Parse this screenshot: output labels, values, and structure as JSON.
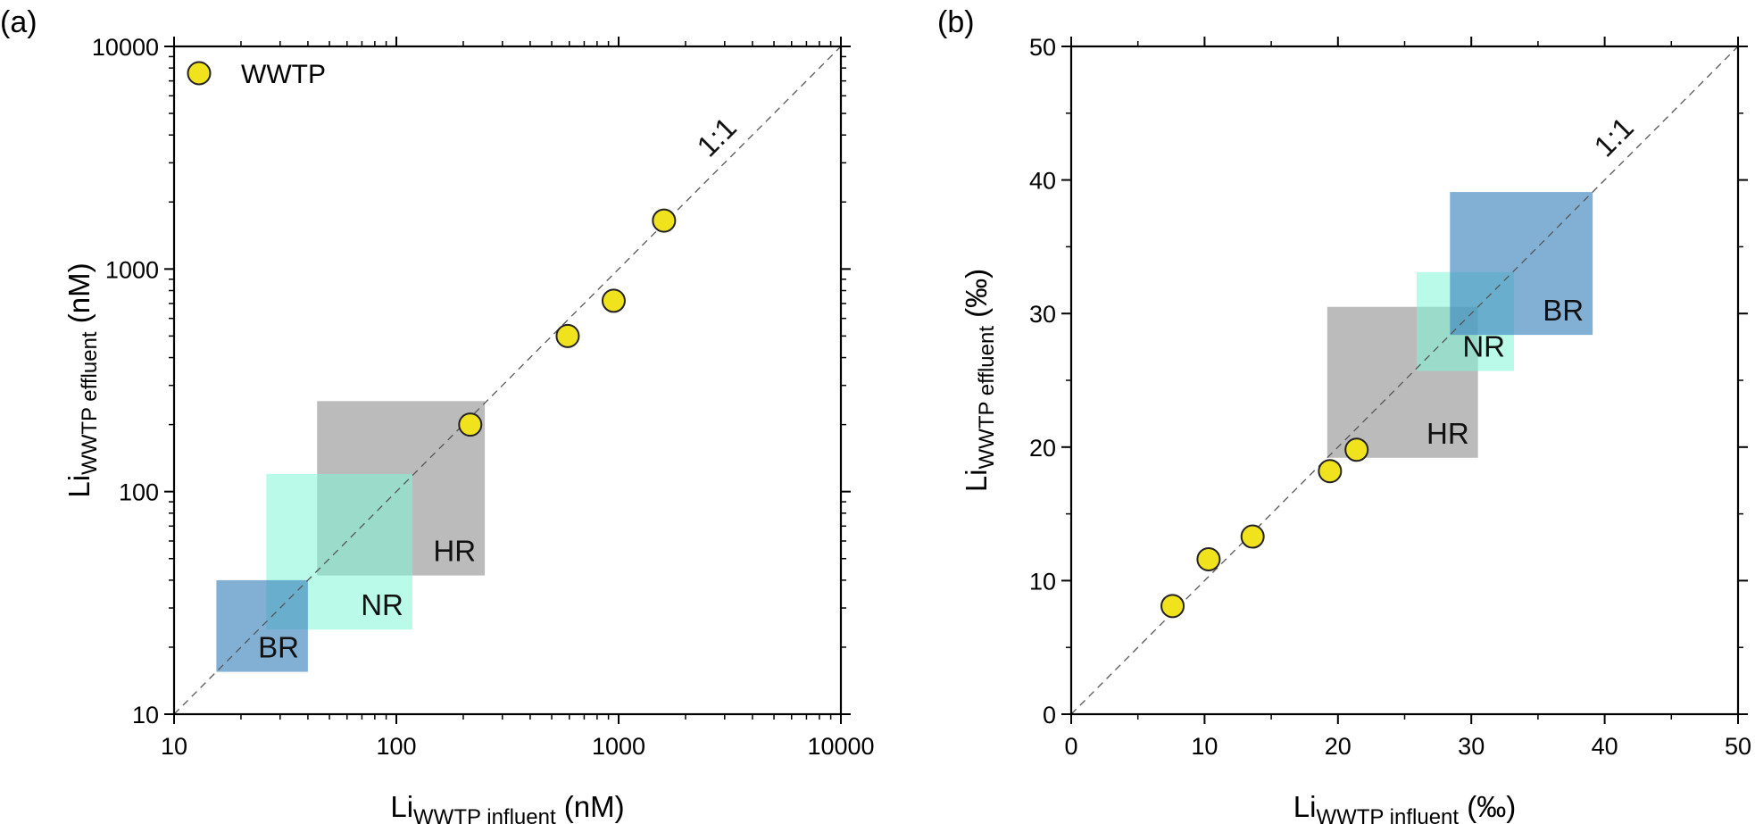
{
  "chart_data": [
    {
      "panel": "(a)",
      "type": "scatter",
      "xscale": "log",
      "yscale": "log",
      "xlim": [
        10,
        10000
      ],
      "ylim": [
        10,
        10000
      ],
      "xticks": [
        10,
        100,
        1000,
        10000
      ],
      "yticks": [
        10,
        100,
        1000,
        10000
      ],
      "xtick_labels": [
        "10",
        "100",
        "1000",
        "10000"
      ],
      "ytick_labels": [
        "10",
        "100",
        "1000",
        "10000"
      ],
      "xlabel": {
        "main": "Li",
        "sub": "WWTP influent",
        "unit": "(nM)"
      },
      "ylabel": {
        "main": "Li",
        "sub": "WWTP effluent",
        "unit": "(nM)"
      },
      "legend": {
        "label": "WWTP",
        "location": "top-left"
      },
      "reference_line": {
        "label": "1:1"
      },
      "series": [
        {
          "name": "WWTP",
          "color": "#f0e21c",
          "x": [
            215,
            590,
            950,
            1600
          ],
          "y": [
            200,
            500,
            720,
            1650
          ]
        }
      ],
      "regions": [
        {
          "name": "HR",
          "x": [
            44,
            250
          ],
          "y": [
            42,
            255
          ],
          "color": "#9e9e9e",
          "opacity": 0.7
        },
        {
          "name": "NR",
          "x": [
            26,
            118
          ],
          "y": [
            24,
            120
          ],
          "color": "#7ff5d5",
          "opacity": 0.55
        },
        {
          "name": "BR",
          "x": [
            15.5,
            40
          ],
          "y": [
            15.5,
            40
          ],
          "color": "#3f86bf",
          "opacity": 0.65
        }
      ]
    },
    {
      "panel": "(b)",
      "type": "scatter",
      "xscale": "linear",
      "yscale": "linear",
      "xlim": [
        0,
        50
      ],
      "ylim": [
        0,
        50
      ],
      "xticks": [
        0,
        10,
        20,
        30,
        40,
        50
      ],
      "yticks": [
        0,
        10,
        20,
        30,
        40,
        50
      ],
      "xtick_labels": [
        "0",
        "10",
        "20",
        "30",
        "40",
        "50"
      ],
      "ytick_labels": [
        "0",
        "10",
        "20",
        "30",
        "40",
        "50"
      ],
      "xlabel": {
        "main": "Li",
        "sub": "WWTP influent",
        "unit": "(‰)"
      },
      "ylabel": {
        "main": "Li",
        "sub": "WWTP effluent",
        "unit": "(‰)"
      },
      "reference_line": {
        "label": "1:1"
      },
      "series": [
        {
          "name": "WWTP",
          "color": "#f0e21c",
          "x": [
            7.6,
            10.3,
            13.6,
            19.4,
            21.4
          ],
          "y": [
            8.1,
            11.6,
            13.3,
            18.2,
            19.8
          ]
        }
      ],
      "regions": [
        {
          "name": "HR",
          "x": [
            19.2,
            30.5
          ],
          "y": [
            19.2,
            30.5
          ],
          "color": "#9e9e9e",
          "opacity": 0.7
        },
        {
          "name": "NR",
          "x": [
            25.9,
            33.2
          ],
          "y": [
            25.7,
            33.1
          ],
          "color": "#7ff5d5",
          "opacity": 0.55
        },
        {
          "name": "BR",
          "x": [
            28.4,
            39.1
          ],
          "y": [
            28.4,
            39.1
          ],
          "color": "#3f86bf",
          "opacity": 0.65
        }
      ]
    }
  ]
}
